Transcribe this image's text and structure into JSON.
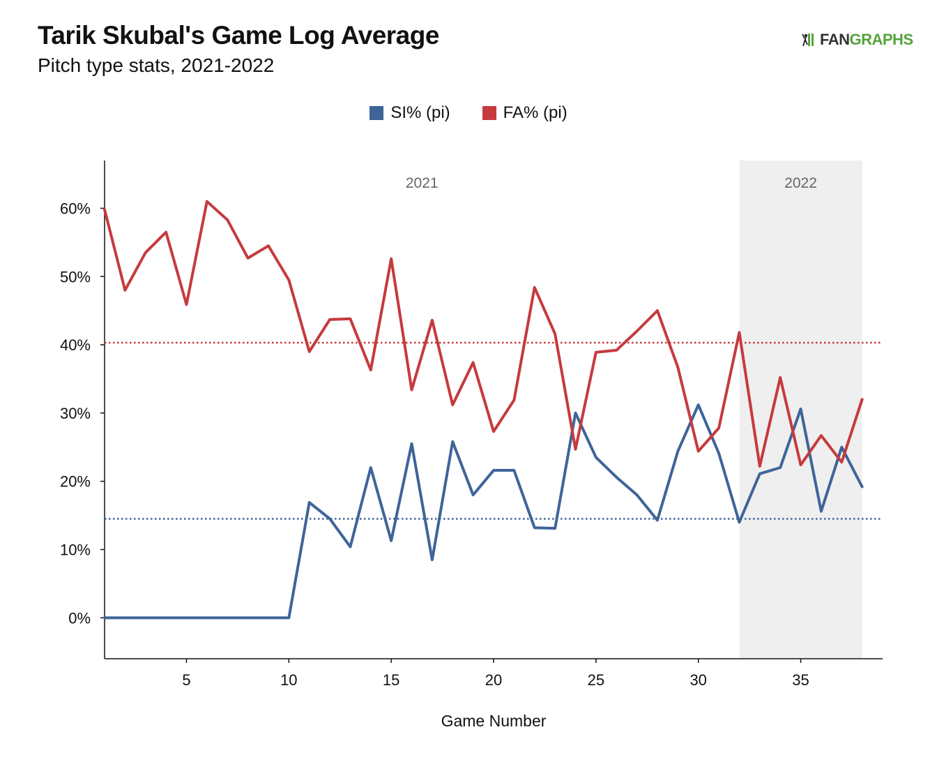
{
  "header": {
    "title": "Tarik Skubal's Game Log Average",
    "subtitle": "Pitch type stats, 2021-2022"
  },
  "logo": {
    "fan": "FAN",
    "graphs": "GRAPHS",
    "icon": "fangraphs-batter-icon"
  },
  "colors": {
    "si": "#3e6599",
    "fa": "#c63a3e",
    "shade": "#efefef",
    "axis": "#111111"
  },
  "chart_data": {
    "type": "line",
    "title": "Tarik Skubal's Game Log Average",
    "subtitle": "Pitch type stats, 2021-2022",
    "xlabel": "Game Number",
    "ylabel": "",
    "xlim": [
      1,
      39
    ],
    "ylim": [
      -6,
      67
    ],
    "x_ticks": [
      5,
      10,
      15,
      20,
      25,
      30,
      35
    ],
    "x_tick_labels": [
      "5",
      "10",
      "15",
      "20",
      "25",
      "30",
      "35"
    ],
    "y_ticks": [
      0,
      10,
      20,
      30,
      40,
      50,
      60
    ],
    "y_tick_labels": [
      "0%",
      "10%",
      "20%",
      "30%",
      "40%",
      "50%",
      "60%"
    ],
    "grid": false,
    "legend_placement": "top-center",
    "seasons": [
      {
        "label": "2021",
        "range": [
          1,
          32
        ],
        "shaded": false
      },
      {
        "label": "2022",
        "range": [
          32,
          38
        ],
        "shaded": true
      }
    ],
    "x": [
      1,
      2,
      3,
      4,
      5,
      6,
      7,
      8,
      9,
      10,
      11,
      12,
      13,
      14,
      15,
      16,
      17,
      18,
      19,
      20,
      21,
      22,
      23,
      24,
      25,
      26,
      27,
      28,
      29,
      30,
      31,
      32,
      33,
      34,
      35,
      36,
      37,
      38
    ],
    "series": [
      {
        "name": "SI% (pi)",
        "color": "#3e6599",
        "average": 14.5,
        "values": [
          0,
          0,
          0,
          0,
          0,
          0,
          0,
          0,
          0,
          0,
          16.9,
          14.5,
          10.4,
          22,
          11.3,
          25.5,
          8.5,
          25.8,
          18,
          21.6,
          21.6,
          13.2,
          13.1,
          30,
          23.5,
          20.6,
          18,
          14.3,
          24.4,
          31.2,
          24.1,
          14,
          21.1,
          22,
          30.6,
          15.6,
          25,
          19.2
        ]
      },
      {
        "name": "FA% (pi)",
        "color": "#c63a3e",
        "average": 40.3,
        "values": [
          59.8,
          48,
          53.5,
          56.5,
          45.9,
          61,
          58.3,
          52.7,
          54.5,
          49.5,
          39,
          43.7,
          43.8,
          36.3,
          52.6,
          33.4,
          43.6,
          31.2,
          37.4,
          27.3,
          31.9,
          48.4,
          41.6,
          24.7,
          38.9,
          39.2,
          42,
          45,
          36.7,
          24.4,
          27.8,
          41.8,
          22.2,
          35.2,
          22.4,
          26.7,
          22.8,
          32
        ]
      }
    ]
  }
}
